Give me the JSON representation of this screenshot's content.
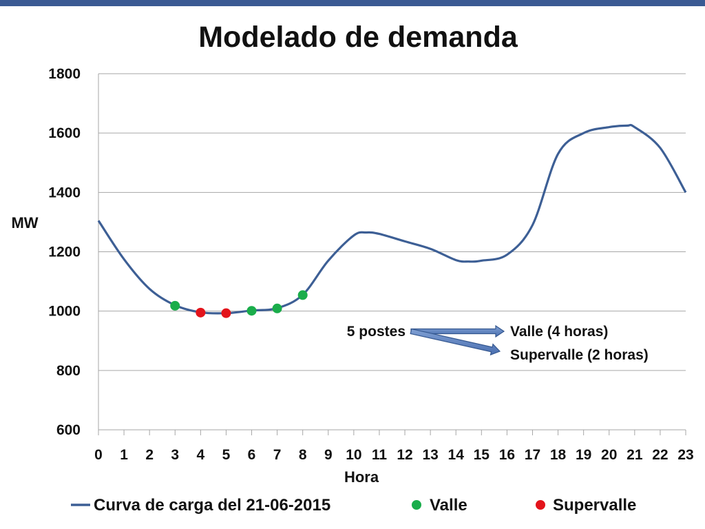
{
  "chart_data": {
    "type": "line",
    "title": "Modelado de demanda",
    "xlabel": "Hora",
    "ylabel": "MW",
    "xlim": [
      0,
      23
    ],
    "ylim": [
      600,
      1800
    ],
    "y_ticks": [
      600,
      800,
      1000,
      1200,
      1400,
      1600,
      1800
    ],
    "x_ticks": [
      0,
      1,
      2,
      3,
      4,
      5,
      6,
      7,
      8,
      9,
      10,
      11,
      12,
      13,
      14,
      15,
      16,
      17,
      18,
      19,
      20,
      21,
      22,
      23
    ],
    "grid": "horizontal",
    "legend_position": "bottom",
    "series": [
      {
        "name": "Curva de carga del 21-06-2015",
        "type": "line",
        "color": "#3d5f95",
        "x": [
          0,
          1,
          2,
          3,
          4,
          5,
          6,
          7,
          8,
          9,
          10,
          10.5,
          11,
          12,
          13,
          14,
          14.5,
          15,
          16,
          17,
          18,
          19,
          20,
          20.7,
          21,
          22,
          23
        ],
        "y": [
          1305,
          1175,
          1075,
          1020,
          996,
          993,
          1002,
          1010,
          1055,
          1170,
          1255,
          1265,
          1260,
          1235,
          1210,
          1172,
          1167,
          1170,
          1190,
          1290,
          1530,
          1600,
          1620,
          1625,
          1620,
          1550,
          1400
        ]
      },
      {
        "name": "Valle",
        "type": "scatter",
        "color": "#1aad4b",
        "x": [
          3,
          6,
          7,
          8
        ],
        "y": [
          1018,
          1001,
          1009,
          1054
        ]
      },
      {
        "name": "Supervalle",
        "type": "scatter",
        "color": "#e3141b",
        "x": [
          4,
          5
        ],
        "y": [
          995,
          993
        ]
      }
    ],
    "annotations": {
      "source": "5 postes",
      "target_1": "Valle (4 horas)",
      "target_2": "Supervalle (2 horas)"
    }
  }
}
